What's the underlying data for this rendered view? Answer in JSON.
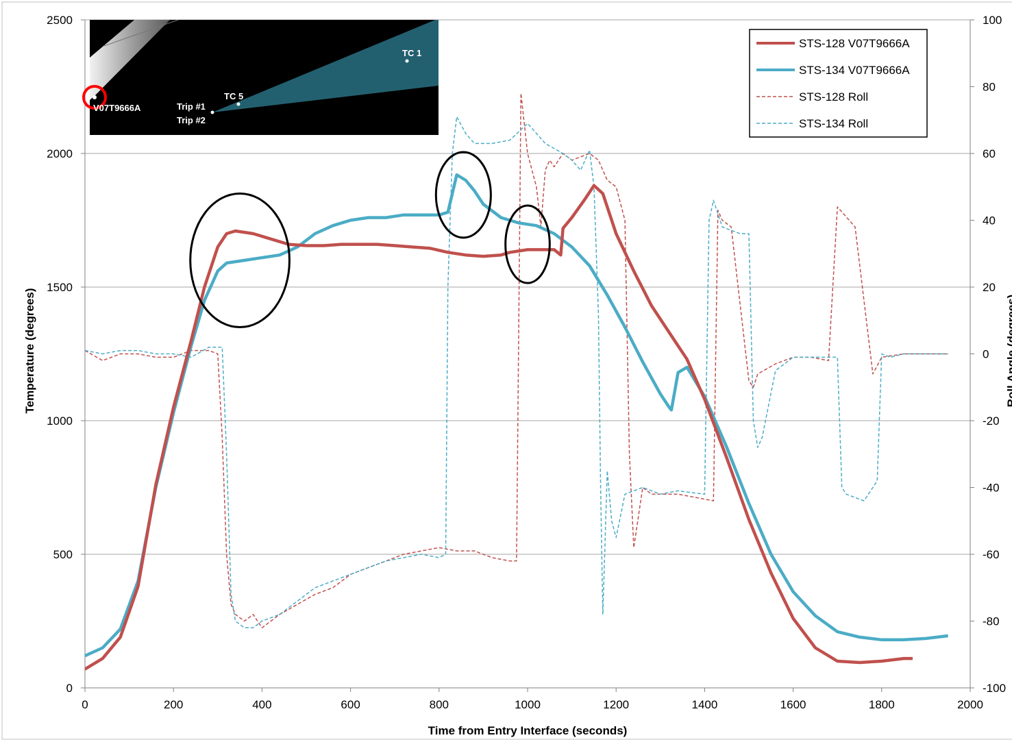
{
  "chart_data": {
    "type": "line",
    "xlabel": "Time from Entry Interface (seconds)",
    "ylabel": "Temperature (degrees)",
    "y2label": "Roll Angle (degrees)",
    "xlim": [
      0,
      2000
    ],
    "ylim": [
      0,
      2500
    ],
    "y2lim": [
      -100,
      100
    ],
    "x_ticks": [
      0,
      200,
      400,
      600,
      800,
      1000,
      1200,
      1400,
      1600,
      1800,
      2000
    ],
    "y_ticks": [
      0,
      500,
      1000,
      1500,
      2000,
      2500
    ],
    "y2_ticks": [
      -100,
      -80,
      -60,
      -40,
      -20,
      0,
      20,
      40,
      60,
      80,
      100
    ],
    "grid": "horizontal",
    "legend_position": "top-right",
    "colors": {
      "sts128": "#c0504d",
      "sts134": "#4bacc6",
      "ellipse": "#000000",
      "inset_bg": "#000000",
      "inset_cone": "#23606f",
      "inset_marker": "#ff0000"
    },
    "series": [
      {
        "name": "STS-128 V07T9666A",
        "axis": "left",
        "style": "solid",
        "color": "#c0504d",
        "x": [
          0,
          40,
          80,
          120,
          160,
          200,
          240,
          270,
          300,
          320,
          340,
          380,
          420,
          460,
          500,
          540,
          580,
          620,
          660,
          700,
          740,
          780,
          820,
          860,
          900,
          940,
          960,
          1000,
          1020,
          1060,
          1075,
          1080,
          1100,
          1130,
          1150,
          1170,
          1200,
          1240,
          1280,
          1320,
          1360,
          1400,
          1450,
          1500,
          1550,
          1600,
          1650,
          1700,
          1750,
          1800,
          1850,
          1870
        ],
        "y": [
          70,
          110,
          190,
          380,
          760,
          1050,
          1300,
          1500,
          1650,
          1700,
          1710,
          1700,
          1680,
          1660,
          1655,
          1655,
          1660,
          1660,
          1660,
          1655,
          1650,
          1645,
          1630,
          1620,
          1615,
          1620,
          1630,
          1640,
          1640,
          1640,
          1620,
          1720,
          1760,
          1830,
          1880,
          1850,
          1700,
          1560,
          1430,
          1330,
          1230,
          1080,
          860,
          630,
          430,
          260,
          150,
          100,
          95,
          100,
          110,
          110
        ]
      },
      {
        "name": "STS-134 V07T9666A",
        "axis": "left",
        "style": "solid",
        "color": "#4bacc6",
        "x": [
          0,
          40,
          80,
          120,
          160,
          200,
          240,
          270,
          300,
          320,
          360,
          400,
          440,
          480,
          520,
          560,
          600,
          640,
          680,
          720,
          760,
          800,
          820,
          840,
          860,
          880,
          900,
          940,
          980,
          1020,
          1060,
          1100,
          1140,
          1180,
          1220,
          1260,
          1300,
          1320,
          1325,
          1340,
          1360,
          1400,
          1450,
          1500,
          1550,
          1600,
          1650,
          1700,
          1750,
          1800,
          1850,
          1900,
          1950
        ],
        "y": [
          120,
          150,
          220,
          400,
          750,
          1030,
          1280,
          1450,
          1560,
          1590,
          1600,
          1610,
          1620,
          1650,
          1700,
          1730,
          1750,
          1760,
          1760,
          1770,
          1770,
          1770,
          1780,
          1920,
          1900,
          1860,
          1810,
          1760,
          1740,
          1730,
          1700,
          1650,
          1580,
          1470,
          1350,
          1220,
          1100,
          1050,
          1040,
          1180,
          1200,
          1090,
          900,
          690,
          500,
          360,
          270,
          210,
          190,
          180,
          180,
          185,
          195
        ]
      },
      {
        "name": "STS-128 Roll",
        "axis": "right",
        "style": "dashed",
        "color": "#c0504d",
        "x": [
          0,
          40,
          80,
          120,
          160,
          200,
          240,
          280,
          300,
          310,
          320,
          330,
          340,
          360,
          380,
          400,
          440,
          480,
          520,
          560,
          600,
          640,
          680,
          720,
          760,
          800,
          840,
          880,
          920,
          960,
          975,
          985,
          1000,
          1020,
          1030,
          1040,
          1050,
          1060,
          1080,
          1100,
          1140,
          1160,
          1180,
          1200,
          1220,
          1230,
          1240,
          1260,
          1280,
          1300,
          1340,
          1380,
          1420,
          1430,
          1440,
          1460,
          1500,
          1510,
          1520,
          1560,
          1600,
          1640,
          1680,
          1700,
          1720,
          1740,
          1780,
          1800,
          1850,
          1900,
          1950
        ],
        "y": [
          1,
          -2,
          0,
          0,
          -1,
          -1,
          1,
          1,
          0,
          -25,
          -60,
          -75,
          -78,
          -80,
          -78,
          -82,
          -78,
          -75,
          -72,
          -70,
          -66,
          -64,
          -62,
          -60,
          -59,
          -58,
          -59,
          -59,
          -61,
          -62,
          -62,
          78,
          60,
          50,
          38,
          55,
          58,
          56,
          60,
          58,
          60,
          58,
          52,
          50,
          40,
          -30,
          -58,
          -40,
          -42,
          -42,
          -42,
          -43,
          -44,
          43,
          40,
          38,
          -8,
          -10,
          -6,
          -3,
          -1,
          -1,
          -2,
          44,
          41,
          38,
          -6,
          -1,
          0,
          0,
          0
        ]
      },
      {
        "name": "STS-134 Roll",
        "axis": "right",
        "style": "dashed",
        "color": "#4bacc6",
        "x": [
          0,
          40,
          80,
          120,
          160,
          200,
          240,
          280,
          310,
          320,
          330,
          340,
          360,
          380,
          400,
          440,
          480,
          520,
          560,
          600,
          640,
          680,
          720,
          760,
          800,
          815,
          820,
          830,
          840,
          860,
          880,
          920,
          960,
          1000,
          1040,
          1080,
          1100,
          1120,
          1140,
          1150,
          1160,
          1165,
          1170,
          1180,
          1190,
          1200,
          1220,
          1260,
          1300,
          1340,
          1400,
          1410,
          1420,
          1440,
          1480,
          1500,
          1510,
          1520,
          1530,
          1560,
          1600,
          1640,
          1680,
          1700,
          1710,
          1720,
          1760,
          1790,
          1800,
          1820,
          1850,
          1900,
          1950
        ],
        "y": [
          1,
          0,
          1,
          1,
          0,
          0,
          -1,
          2,
          2,
          -30,
          -72,
          -80,
          -82,
          -82,
          -80,
          -78,
          -74,
          -70,
          -68,
          -66,
          -64,
          -62,
          -61,
          -60,
          -61,
          -60,
          20,
          60,
          71,
          66,
          63,
          63,
          64,
          69,
          63,
          60,
          58,
          55,
          61,
          50,
          12,
          -40,
          -78,
          -35,
          -50,
          -55,
          -42,
          -40,
          -42,
          -41,
          -42,
          40,
          46,
          38,
          36,
          36,
          -20,
          -28,
          -25,
          -5,
          -1,
          -1,
          -1,
          -1,
          -40,
          -42,
          -44,
          -38,
          0,
          -1,
          0,
          0,
          0
        ]
      }
    ],
    "annotations": [
      {
        "type": "ellipse",
        "cx": 350,
        "cy": 1600,
        "rx": 112,
        "ry": 250
      },
      {
        "type": "ellipse",
        "cx": 855,
        "cy": 1845,
        "rx": 62,
        "ry": 160
      },
      {
        "type": "ellipse",
        "cx": 1000,
        "cy": 1660,
        "rx": 50,
        "ry": 145
      }
    ]
  },
  "inset": {
    "labels": {
      "v07": "V07T9666A",
      "trip1": "Trip #1",
      "trip2": "Trip #2",
      "tc5": "TC 5",
      "tc1": "TC 1"
    }
  }
}
